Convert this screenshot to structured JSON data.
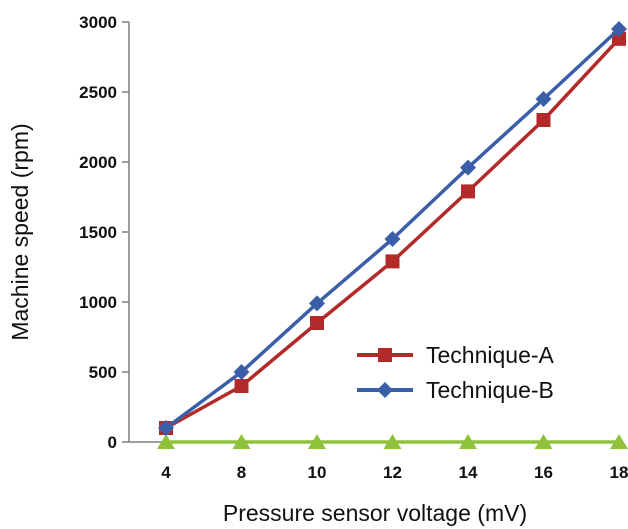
{
  "chart_data": {
    "type": "line",
    "xlabel": "Pressure sensor voltage (mV)",
    "ylabel": "Machine speed (rpm)",
    "categories": [
      "4",
      "8",
      "10",
      "12",
      "14",
      "16",
      "18"
    ],
    "ylim": [
      0,
      3000
    ],
    "yticks": [
      "0",
      "500",
      "1000",
      "1500",
      "2000",
      "2500",
      "3000"
    ],
    "grid": false,
    "legend_position": "right",
    "series": [
      {
        "name": "Technique-A",
        "color": "#b32a2a",
        "marker": "square",
        "values": [
          100,
          400,
          850,
          1290,
          1790,
          2300,
          2880
        ]
      },
      {
        "name": "Technique-B",
        "color": "#3a5fa8",
        "marker": "diamond",
        "values": [
          100,
          500,
          990,
          1450,
          1960,
          2450,
          2950
        ]
      },
      {
        "color": "#8fc23a",
        "marker": "triangle",
        "values": [
          0,
          0,
          0,
          0,
          0,
          0,
          0
        ]
      }
    ]
  }
}
